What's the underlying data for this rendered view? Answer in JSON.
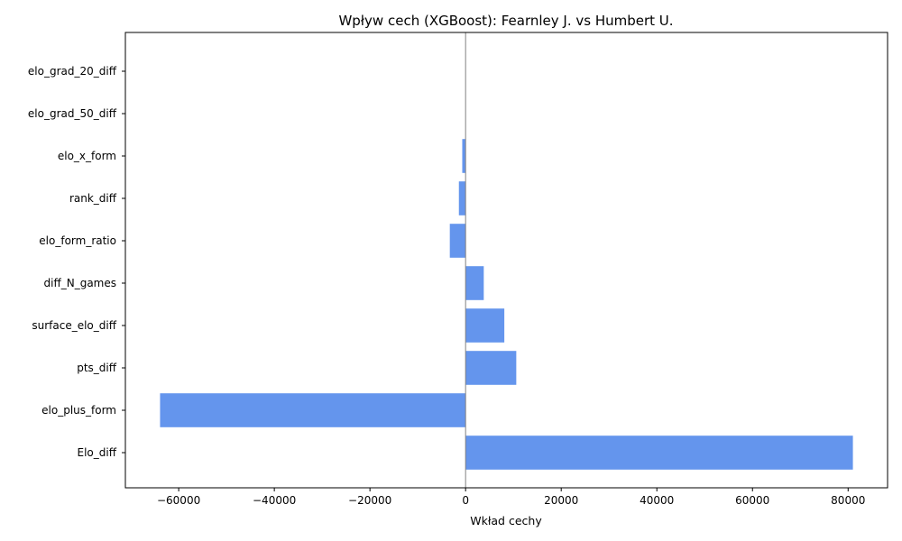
{
  "chart_data": {
    "type": "bar",
    "orientation": "horizontal",
    "title": "Wpływ cech (XGBoost): Fearnley J. vs Humbert U.",
    "xlabel": "Wkład cechy",
    "ylabel": "",
    "categories": [
      "elo_grad_20_diff",
      "elo_grad_50_diff",
      "elo_x_form",
      "rank_diff",
      "elo_form_ratio",
      "diff_N_games",
      "surface_elo_diff",
      "pts_diff",
      "elo_plus_form",
      "Elo_diff"
    ],
    "values": [
      0,
      0,
      -700,
      -1400,
      -3300,
      3800,
      8100,
      10600,
      -63900,
      81000
    ],
    "xlim": [
      -71150,
      88250
    ],
    "xticks": [
      -60000,
      -40000,
      -20000,
      0,
      20000,
      40000,
      60000,
      80000
    ],
    "xtick_labels": [
      "−60000",
      "−40000",
      "−20000",
      "0",
      "20000",
      "40000",
      "60000",
      "80000"
    ],
    "grid": false,
    "legend": "none",
    "reference_line_x": 0,
    "colors": {
      "bar": "#6495ed",
      "zero_line": "#808080",
      "axes": "#000000"
    }
  }
}
